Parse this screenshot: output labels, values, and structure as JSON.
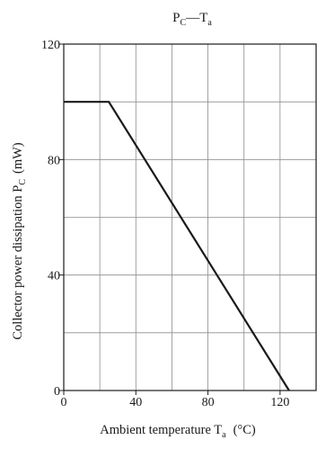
{
  "chart_data": {
    "type": "line",
    "title": {
      "base1": "P",
      "sub1": "C",
      "sep": "—",
      "base2": "T",
      "sub2": "a"
    },
    "xlabel": {
      "text": "Ambient temperature  T",
      "sub": "a",
      "unit": "(°C)"
    },
    "ylabel": {
      "text": "Collector power dissipation  P",
      "sub": "C",
      "unit": "(mW)"
    },
    "xlim": [
      0,
      140
    ],
    "ylim": [
      0,
      120
    ],
    "x_ticks": [
      0,
      40,
      80,
      120
    ],
    "y_ticks": [
      0,
      40,
      80,
      120
    ],
    "x_grid": [
      20,
      40,
      60,
      80,
      100,
      120
    ],
    "y_grid": [
      20,
      40,
      60,
      80,
      100
    ],
    "grid": true,
    "series": [
      {
        "x": [
          0,
          25,
          125
        ],
        "y": [
          100,
          100,
          0
        ],
        "color": "#1a1a1a"
      }
    ]
  }
}
